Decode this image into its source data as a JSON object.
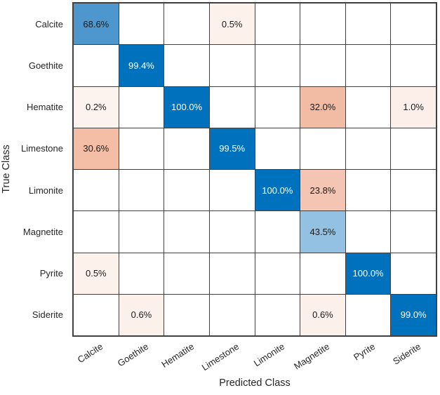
{
  "chart_data": {
    "type": "heatmap",
    "subtype": "confusion-matrix",
    "title": "",
    "xlabel": "Predicted Class",
    "ylabel": "True Class",
    "classes": [
      "Calcite",
      "Goethite",
      "Hematite",
      "Limestone",
      "Limonite",
      "Magnetite",
      "Pyrite",
      "Siderite"
    ],
    "normalization": "column-normalized-percent",
    "matrix_percent": [
      [
        68.6,
        null,
        null,
        0.5,
        null,
        null,
        null,
        null
      ],
      [
        null,
        99.4,
        null,
        null,
        null,
        null,
        null,
        null
      ],
      [
        0.2,
        null,
        100.0,
        null,
        null,
        32.0,
        null,
        1.0
      ],
      [
        30.6,
        null,
        null,
        99.5,
        null,
        null,
        null,
        null
      ],
      [
        null,
        null,
        null,
        null,
        100.0,
        23.8,
        null,
        null
      ],
      [
        null,
        null,
        null,
        null,
        null,
        43.5,
        null,
        null
      ],
      [
        0.5,
        null,
        null,
        null,
        null,
        null,
        100.0,
        null
      ],
      [
        null,
        0.6,
        null,
        null,
        null,
        0.6,
        null,
        99.0
      ]
    ],
    "cells": [
      {
        "row": 0,
        "col": 0,
        "label": "68.6%",
        "bg": "#4E97CE",
        "fg": "#1A1A1A"
      },
      {
        "row": 0,
        "col": 3,
        "label": "0.5%",
        "bg": "#FDF1EB",
        "fg": "#1A1A1A"
      },
      {
        "row": 1,
        "col": 1,
        "label": "99.4%",
        "bg": "#0072BD",
        "fg": "#FFFFFF"
      },
      {
        "row": 2,
        "col": 0,
        "label": "0.2%",
        "bg": "#FDF3EE",
        "fg": "#1A1A1A"
      },
      {
        "row": 2,
        "col": 2,
        "label": "100.0%",
        "bg": "#0072BD",
        "fg": "#FFFFFF"
      },
      {
        "row": 2,
        "col": 5,
        "label": "32.0%",
        "bg": "#F2BCA4",
        "fg": "#1A1A1A"
      },
      {
        "row": 2,
        "col": 7,
        "label": "1.0%",
        "bg": "#FCEFE9",
        "fg": "#1A1A1A"
      },
      {
        "row": 3,
        "col": 0,
        "label": "30.6%",
        "bg": "#F3BDA6",
        "fg": "#1A1A1A"
      },
      {
        "row": 3,
        "col": 3,
        "label": "99.5%",
        "bg": "#0072BD",
        "fg": "#FFFFFF"
      },
      {
        "row": 4,
        "col": 4,
        "label": "100.0%",
        "bg": "#0072BD",
        "fg": "#FFFFFF"
      },
      {
        "row": 4,
        "col": 5,
        "label": "23.8%",
        "bg": "#F4C5B2",
        "fg": "#1A1A1A"
      },
      {
        "row": 5,
        "col": 5,
        "label": "43.5%",
        "bg": "#92C1E2",
        "fg": "#1A1A1A"
      },
      {
        "row": 6,
        "col": 0,
        "label": "0.5%",
        "bg": "#FDF1EB",
        "fg": "#1A1A1A"
      },
      {
        "row": 6,
        "col": 6,
        "label": "100.0%",
        "bg": "#0072BD",
        "fg": "#FFFFFF"
      },
      {
        "row": 7,
        "col": 1,
        "label": "0.6%",
        "bg": "#FCF0EA",
        "fg": "#1A1A1A"
      },
      {
        "row": 7,
        "col": 5,
        "label": "0.6%",
        "bg": "#FCF0EA",
        "fg": "#1A1A1A"
      },
      {
        "row": 7,
        "col": 7,
        "label": "99.0%",
        "bg": "#0072BD",
        "fg": "#FFFFFF"
      }
    ],
    "layout_hints": {
      "grid": "on",
      "x_tick_rotation_deg": -33,
      "legend": "none"
    }
  },
  "colors": {
    "diagonal_base": "#0072BD",
    "off_diagonal_base": "#D95319",
    "grid_line": "#404040",
    "axis_text": "#262626",
    "cell_text_dark": "#1A1A1A",
    "cell_text_light": "#FFFFFF",
    "empty_cell": "#FFFFFF",
    "background": "#FFFFFF"
  }
}
